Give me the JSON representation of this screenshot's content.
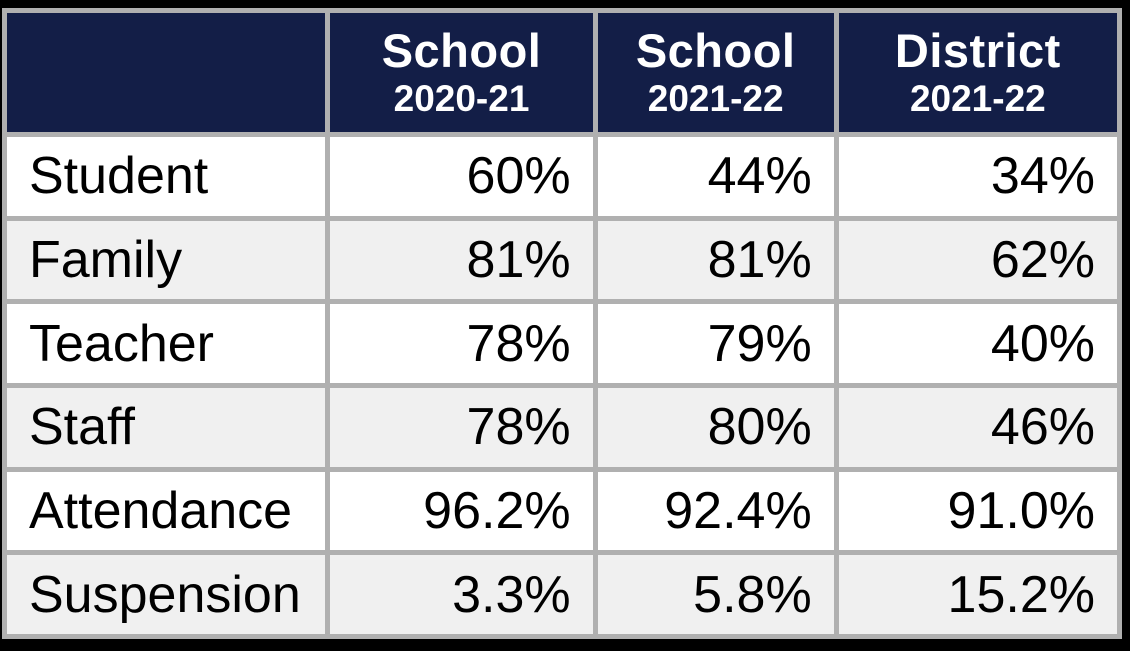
{
  "table": {
    "columns": [
      {
        "title": "",
        "subtitle": ""
      },
      {
        "title": "School",
        "subtitle": "2020-21"
      },
      {
        "title": "School",
        "subtitle": "2021-22"
      },
      {
        "title": "District",
        "subtitle": "2021-22"
      }
    ],
    "rows": [
      {
        "label": "Student",
        "values": [
          "60%",
          "44%",
          "34%"
        ]
      },
      {
        "label": "Family",
        "values": [
          "81%",
          "81%",
          "62%"
        ]
      },
      {
        "label": "Teacher",
        "values": [
          "78%",
          "79%",
          "40%"
        ]
      },
      {
        "label": "Staff",
        "values": [
          "78%",
          "80%",
          "46%"
        ]
      },
      {
        "label": "Attendance",
        "values": [
          "96.2%",
          "92.4%",
          "91.0%"
        ]
      },
      {
        "label": "Suspension",
        "values": [
          "3.3%",
          "5.8%",
          "15.2%"
        ]
      }
    ]
  },
  "chart_data": {
    "type": "table",
    "categories": [
      "Student",
      "Family",
      "Teacher",
      "Staff",
      "Attendance",
      "Suspension"
    ],
    "series": [
      {
        "name": "School 2020-21",
        "values": [
          "60%",
          "81%",
          "78%",
          "78%",
          "96.2%",
          "3.3%"
        ]
      },
      {
        "name": "School 2021-22",
        "values": [
          "44%",
          "81%",
          "79%",
          "80%",
          "92.4%",
          "5.8%"
        ]
      },
      {
        "name": "District 2021-22",
        "values": [
          "34%",
          "62%",
          "40%",
          "46%",
          "91.0%",
          "15.2%"
        ]
      }
    ]
  },
  "colors": {
    "frame": "#000000",
    "border": "#b0b0b0",
    "header_bg": "#131e47",
    "header_text": "#ffffff",
    "row_bg": "#ffffff",
    "row_alt_bg": "#f0f0f0",
    "body_text": "#000000"
  }
}
